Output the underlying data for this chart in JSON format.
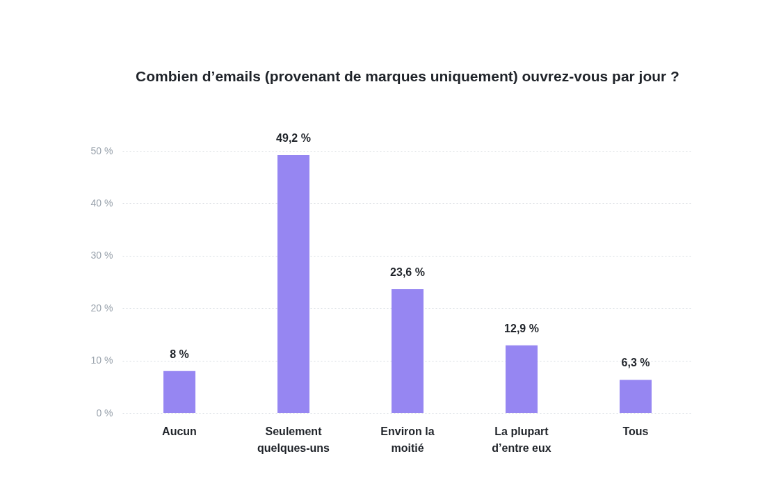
{
  "chart_data": {
    "type": "bar",
    "title": "Combien d’emails (provenant de marques uniquement) ouvrez-vous par jour ?",
    "categories": [
      "Aucun",
      "Seulement\nquelques-uns",
      "Environ la\nmoitié",
      "La plupart\nd’entre eux",
      "Tous"
    ],
    "values": [
      8,
      49.2,
      23.6,
      12.9,
      6.3
    ],
    "value_labels": [
      "8 %",
      "49,2 %",
      "23,6 %",
      "12,9 %",
      "6,3 %"
    ],
    "color": "#9686f2",
    "ylim": [
      0,
      50
    ],
    "yticks": [
      {
        "value": 0,
        "label": "0 %"
      },
      {
        "value": 10,
        "label": "10 %"
      },
      {
        "value": 20,
        "label": "20 %"
      },
      {
        "value": 30,
        "label": "30 %"
      },
      {
        "value": 40,
        "label": "40 %"
      },
      {
        "value": 50,
        "label": "50 %"
      }
    ],
    "grid": "y"
  }
}
